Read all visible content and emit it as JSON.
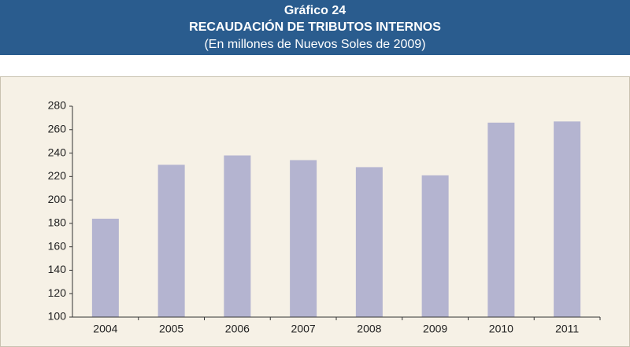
{
  "chart_data": {
    "type": "bar",
    "chart_number": "Gráfico 24",
    "title": "RECAUDACIÓN DE TRIBUTOS INTERNOS",
    "subtitle": "(En millones de Nuevos Soles de 2009)",
    "categories": [
      "2004",
      "2005",
      "2006",
      "2007",
      "2008",
      "2009",
      "2010",
      "2011"
    ],
    "values": [
      184,
      230,
      238,
      234,
      228,
      221,
      266,
      267
    ],
    "color": "#b4b4d0",
    "ylim": [
      100,
      280
    ],
    "yticks": [
      100,
      120,
      140,
      160,
      180,
      200,
      220,
      240,
      260,
      280
    ],
    "grid": false
  }
}
